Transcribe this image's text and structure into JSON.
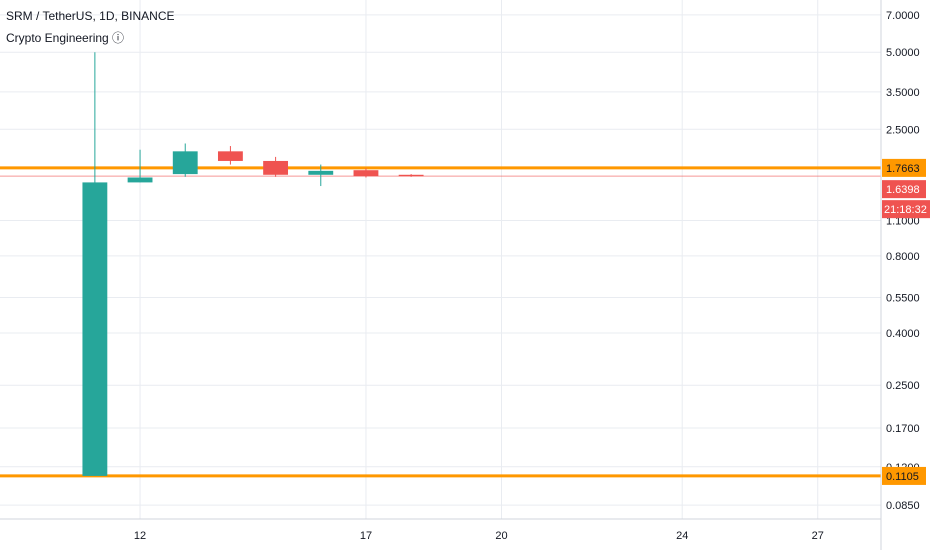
{
  "header": {
    "title": "SRM / TetherUS, 1D, BINANCE",
    "indicator": "Crypto Engineering ⓘ"
  },
  "colors": {
    "up": "#26a69a",
    "down": "#ef5350",
    "level": "#ff9800",
    "grid": "#e9ecf1",
    "last_price": "#ef5350"
  },
  "chart_data": {
    "type": "candlestick",
    "y_scale": "log",
    "ylim": [
      0.075,
      8.0
    ],
    "xlim": [
      8.9,
      28.4
    ],
    "y_ticks": [
      "7.0000",
      "5.0000",
      "3.5000",
      "2.5000",
      "1.7663",
      "1.6398",
      "1.1000",
      "0.8000",
      "0.5500",
      "0.4000",
      "0.2500",
      "0.1700",
      "0.1200",
      "0.1105",
      "0.0850"
    ],
    "grid_y": [
      7.0,
      5.0,
      3.5,
      2.5,
      1.1,
      0.8,
      0.55,
      0.4,
      0.25,
      0.17,
      0.12,
      0.085
    ],
    "x_ticks": [
      {
        "label": "12",
        "x": 12
      },
      {
        "label": "17",
        "x": 17
      },
      {
        "label": "20",
        "x": 20
      },
      {
        "label": "24",
        "x": 24
      },
      {
        "label": "27",
        "x": 27
      }
    ],
    "candles": [
      {
        "x": 11,
        "open": 0.1105,
        "high": 5.0,
        "low": 0.1105,
        "close": 1.55
      },
      {
        "x": 12,
        "open": 1.55,
        "high": 2.08,
        "low": 1.55,
        "close": 1.62
      },
      {
        "x": 13,
        "open": 1.67,
        "high": 2.2,
        "low": 1.63,
        "close": 2.05
      },
      {
        "x": 14,
        "open": 2.05,
        "high": 2.15,
        "low": 1.82,
        "close": 1.88
      },
      {
        "x": 15,
        "open": 1.88,
        "high": 1.95,
        "low": 1.63,
        "close": 1.66
      },
      {
        "x": 16,
        "open": 1.66,
        "high": 1.82,
        "low": 1.5,
        "close": 1.72
      },
      {
        "x": 17,
        "open": 1.73,
        "high": 1.76,
        "low": 1.62,
        "close": 1.64
      },
      {
        "x": 18,
        "open": 1.66,
        "high": 1.67,
        "low": 1.63,
        "close": 1.6398
      }
    ],
    "levels": [
      {
        "value": 1.7663,
        "label": "1.7663"
      },
      {
        "value": 0.1105,
        "label": "0.1105"
      }
    ],
    "last_price": {
      "value": 1.6398,
      "label": "1.6398",
      "countdown": "21:18:32"
    }
  }
}
